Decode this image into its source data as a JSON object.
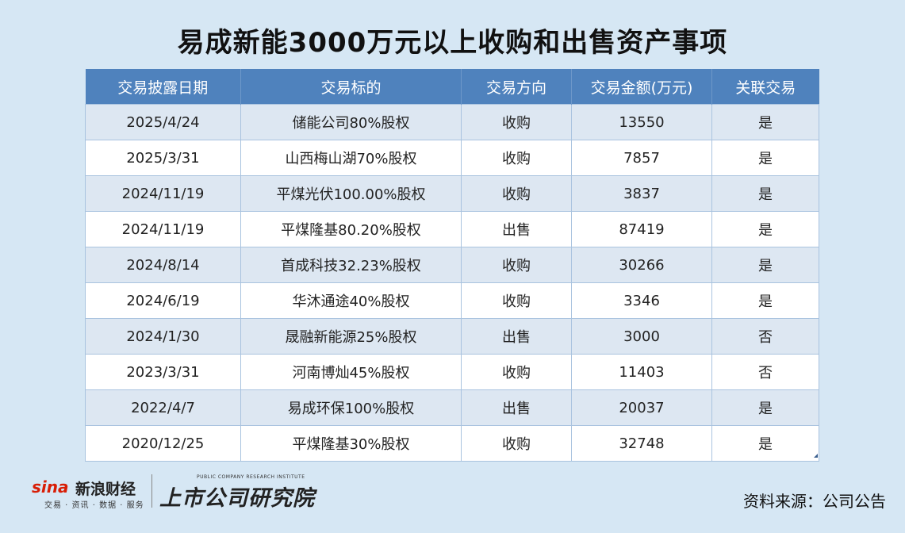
{
  "title": "易成新能3000万元以上收购和出售资产事项",
  "chart_data": {
    "type": "table",
    "columns": [
      "交易披露日期",
      "交易标的",
      "交易方向",
      "交易金额(万元)",
      "关联交易"
    ],
    "rows": [
      [
        "2025/4/24",
        "储能公司80%股权",
        "收购",
        "13550",
        "是"
      ],
      [
        "2025/3/31",
        "山西梅山湖70%股权",
        "收购",
        "7857",
        "是"
      ],
      [
        "2024/11/19",
        "平煤光伏100.00%股权",
        "收购",
        "3837",
        "是"
      ],
      [
        "2024/11/19",
        "平煤隆基80.20%股权",
        "出售",
        "87419",
        "是"
      ],
      [
        "2024/8/14",
        "首成科技32.23%股权",
        "收购",
        "30266",
        "是"
      ],
      [
        "2024/6/19",
        "华沐通途40%股权",
        "收购",
        "3346",
        "是"
      ],
      [
        "2024/1/30",
        "晟融新能源25%股权",
        "出售",
        "3000",
        "否"
      ],
      [
        "2023/3/31",
        "河南博灿45%股权",
        "收购",
        "11403",
        "否"
      ],
      [
        "2022/4/7",
        "易成环保100%股权",
        "出售",
        "20037",
        "是"
      ],
      [
        "2020/12/25",
        "平煤隆基30%股权",
        "收购",
        "32748",
        "是"
      ]
    ]
  },
  "footer": {
    "sina_word": "sina",
    "sina_cn": "新浪财经",
    "sina_sub": "交易 · 资讯 · 数据 · 服务",
    "institute_en": "PUBLIC COMPANY RESEARCH INSTITUTE",
    "institute_cn": "上市公司研究院",
    "source": "资料来源：公司公告"
  },
  "colors": {
    "header_bg": "#4f82bd",
    "row_alt": "#dde7f2",
    "page_bg": "#d6e7f4",
    "brand_red": "#d81e06"
  }
}
